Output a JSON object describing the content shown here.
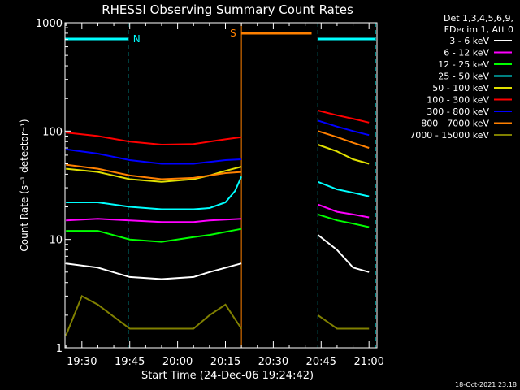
{
  "chart_data": {
    "type": "line",
    "title": "RHESSI Observing Summary Count Rates",
    "xlabel": "Start Time (24-Dec-06 19:24:42)",
    "ylabel": "Count Rate (s⁻¹ detector⁻¹)",
    "y_scale": "log",
    "ylim": [
      1,
      1000
    ],
    "yticks": [
      {
        "value": 1,
        "label": "1"
      },
      {
        "value": 10,
        "label": "10"
      },
      {
        "value": 100,
        "label": "100"
      },
      {
        "value": 1000,
        "label": "1000"
      }
    ],
    "xlim": [
      "19:24:42",
      "21:02:30"
    ],
    "xticks": [
      "19:30",
      "19:45",
      "20:00",
      "20:15",
      "20:30",
      "20:45",
      "21:00"
    ],
    "legend_header": [
      "Det 1,3,4,5,6,9,",
      "FDecim 1, Att 0"
    ],
    "legend_position": "right",
    "footer_date": "18-Oct-2021 23:18",
    "gap": [
      "20:20:00",
      "20:43:30"
    ],
    "night_intervals": [
      {
        "start": "19:24:42",
        "end": "19:44:30",
        "label": "N"
      },
      {
        "start": "20:44:00",
        "end": "21:02:00",
        "label": ""
      }
    ],
    "saa_intervals": [
      {
        "start": "20:20:00",
        "end": "20:42:00",
        "label": "S"
      }
    ],
    "series": [
      {
        "name": "3 - 6 keV",
        "color": "#ffffff",
        "x": [
          "19:25",
          "19:35",
          "19:45",
          "19:55",
          "20:05",
          "20:10",
          "20:20",
          "20:44",
          "20:50",
          "20:55",
          "21:00"
        ],
        "y": [
          6,
          5.5,
          4.5,
          4.3,
          4.5,
          5,
          6,
          11,
          8,
          5.5,
          5
        ]
      },
      {
        "name": "6 - 12 keV",
        "color": "#ff00ff",
        "x": [
          "19:25",
          "19:35",
          "19:45",
          "19:55",
          "20:05",
          "20:10",
          "20:20",
          "20:44",
          "20:50",
          "20:55",
          "21:00"
        ],
        "y": [
          15,
          15.5,
          15,
          14.5,
          14.5,
          15,
          15.5,
          21,
          18,
          17,
          16
        ]
      },
      {
        "name": "12 - 25 keV",
        "color": "#00ff00",
        "x": [
          "19:25",
          "19:35",
          "19:45",
          "19:55",
          "20:05",
          "20:10",
          "20:20",
          "20:44",
          "20:50",
          "20:55",
          "21:00"
        ],
        "y": [
          12,
          12,
          10,
          9.5,
          10.5,
          11,
          12.5,
          17,
          15,
          14,
          13
        ]
      },
      {
        "name": "25 - 50 keV",
        "color": "#00ffff",
        "x": [
          "19:25",
          "19:35",
          "19:45",
          "19:55",
          "20:05",
          "20:10",
          "20:15",
          "20:18",
          "20:20",
          "20:44",
          "20:50",
          "20:55",
          "21:00"
        ],
        "y": [
          22,
          22,
          20,
          19,
          19,
          19.5,
          22,
          28,
          38,
          34,
          29,
          27,
          25
        ]
      },
      {
        "name": "50 - 100 keV",
        "color": "#e0e000",
        "x": [
          "19:25",
          "19:35",
          "19:45",
          "19:55",
          "20:05",
          "20:10",
          "20:15",
          "20:20",
          "20:44",
          "20:50",
          "20:55",
          "21:00"
        ],
        "y": [
          45,
          42,
          36,
          34,
          36,
          39,
          43,
          47,
          75,
          65,
          55,
          50
        ]
      },
      {
        "name": "100 - 300 keV",
        "color": "#ff0000",
        "x": [
          "19:25",
          "19:35",
          "19:45",
          "19:55",
          "20:05",
          "20:10",
          "20:15",
          "20:20",
          "20:44",
          "20:50",
          "20:55",
          "21:00"
        ],
        "y": [
          97,
          90,
          80,
          75,
          76,
          80,
          84,
          88,
          155,
          140,
          130,
          120
        ]
      },
      {
        "name": "300 - 800 keV",
        "color": "#0000ff",
        "x": [
          "19:25",
          "19:35",
          "19:45",
          "19:55",
          "20:05",
          "20:10",
          "20:15",
          "20:20",
          "20:44",
          "20:50",
          "20:55",
          "21:00"
        ],
        "y": [
          68,
          62,
          54,
          50,
          50,
          52,
          54,
          55,
          125,
          110,
          100,
          92
        ]
      },
      {
        "name": "800 - 7000 keV",
        "color": "#ff8000",
        "x": [
          "19:25",
          "19:35",
          "19:45",
          "19:55",
          "20:05",
          "20:10",
          "20:15",
          "20:20",
          "20:44",
          "20:50",
          "20:55",
          "21:00"
        ],
        "y": [
          49,
          45,
          39,
          36,
          37,
          39,
          41,
          42,
          100,
          88,
          78,
          70
        ]
      },
      {
        "name": "7000 - 15000 keV",
        "color": "#808000",
        "x": [
          "19:25",
          "19:30",
          "19:35",
          "19:45",
          "19:55",
          "20:05",
          "20:10",
          "20:15",
          "20:20",
          "20:44",
          "20:50",
          "21:00"
        ],
        "y": [
          1.3,
          3,
          2.5,
          1.5,
          1.5,
          1.5,
          2,
          2.5,
          1.5,
          2,
          1.5,
          1.5
        ]
      }
    ]
  }
}
